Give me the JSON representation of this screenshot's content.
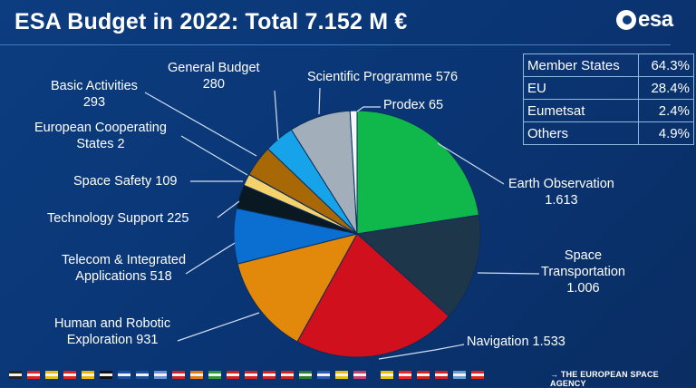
{
  "title": "ESA Budget in 2022: Total 7.152 M €",
  "logo_text": "esa",
  "footer": "→ THE EUROPEAN SPACE AGENCY",
  "funding_table": [
    {
      "source": "Member States",
      "share": "64.3%"
    },
    {
      "source": "EU",
      "share": "28.4%"
    },
    {
      "source": "Eumetsat",
      "share": "2.4%"
    },
    {
      "source": "Others",
      "share": "4.9%"
    }
  ],
  "flag_colors": [
    "#222",
    "#d22",
    "#e5c010",
    "#d22",
    "#e8b800",
    "#111",
    "#1a4fa0",
    "#1a4fa0",
    "#6b8fd0",
    "#c22",
    "#e07a10",
    "#2a9a3a",
    "#c22",
    "#c22",
    "#c22",
    "#c22",
    "#2a7a3a",
    "#2a5ab0",
    "#e5c010",
    "#c0406a",
    "#e5c010",
    "#e22",
    "#c22",
    "#c22",
    "#6a9ad0",
    "#d22"
  ],
  "chart_data": {
    "type": "pie",
    "title": "ESA Budget in 2022: Total 7.152 M €",
    "unit": "M €",
    "start": "12 o'clock, clockwise",
    "slices": [
      {
        "label": "Earth Observation",
        "value_text": "1.613",
        "value": 1613,
        "color": "#10b84c"
      },
      {
        "label": "Space Transportation",
        "value_text": "1.006",
        "value": 1006,
        "color": "#1e3649"
      },
      {
        "label": "Navigation",
        "value_text": "1.533",
        "value": 1533,
        "color": "#d0101c"
      },
      {
        "label": "Human and Robotic Exploration",
        "value_text": "931",
        "value": 931,
        "color": "#e2890c"
      },
      {
        "label": "Telecom & Integrated Applications",
        "value_text": "518",
        "value": 518,
        "color": "#0b6fd2"
      },
      {
        "label": "Technology Support",
        "value_text": "225",
        "value": 225,
        "color": "#0a1822"
      },
      {
        "label": "Space Safety",
        "value_text": "109",
        "value": 109,
        "color": "#f6d26c"
      },
      {
        "label": "European Cooperating States",
        "value_text": "2",
        "value": 2,
        "color": "#c07a10"
      },
      {
        "label": "Basic Activities",
        "value_text": "293",
        "value": 293,
        "color": "#a86806"
      },
      {
        "label": "General Budget",
        "value_text": "280",
        "value": 280,
        "color": "#17a3ea"
      },
      {
        "label": "Scientific Programme",
        "value_text": "576",
        "value": 576,
        "color": "#a3aebb"
      },
      {
        "label": "Prodex",
        "value_text": "65",
        "value": 65,
        "color": "#f4f8fc"
      }
    ],
    "labels": {
      "eo1": "Earth Observation",
      "eo2": "1.613",
      "st1": "Space",
      "st2": "Transportation",
      "st3": "1.006",
      "nav": "Navigation 1.533",
      "hre1": "Human and Robotic",
      "hre2": "Exploration 931",
      "tel1": "Telecom & Integrated",
      "tel2": "Applications 518",
      "tech": "Technology Support 225",
      "safety": "Space Safety 109",
      "ecs1": "European Cooperating",
      "ecs2": "States 2",
      "basic1": "Basic Activities",
      "basic2": "293",
      "gen1": "General Budget",
      "gen2": "280",
      "sci": "Scientific Programme 576",
      "prodex": "Prodex 65"
    }
  }
}
